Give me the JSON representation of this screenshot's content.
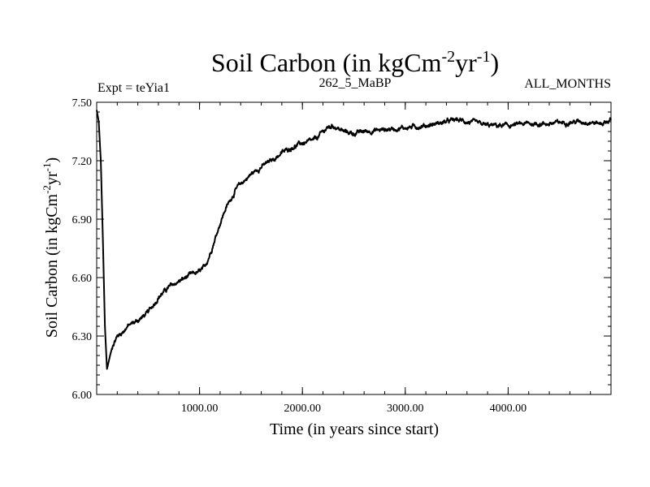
{
  "chart_data": {
    "type": "line",
    "title": "Soil Carbon (in kgCm",
    "title_sup1": "-2",
    "title_mid": "yr",
    "title_sup2": "-1",
    "title_end": ")",
    "subtitle_left": "Expt = teYia1",
    "subtitle_center": "262_5_MaBP",
    "subtitle_right": "ALL_MONTHS",
    "xlabel": "Time (in years since start)",
    "ylabel": "Soil Carbon (in kgCm",
    "ylabel_sup1": "-2",
    "ylabel_mid": "yr",
    "ylabel_sup2": "-1",
    "ylabel_end": ")",
    "xlim": [
      0,
      5000
    ],
    "ylim": [
      6.0,
      7.5
    ],
    "x_ticks": [
      1000,
      2000,
      3000,
      4000
    ],
    "x_tick_labels": [
      "1000.00",
      "2000.00",
      "3000.00",
      "4000.00"
    ],
    "y_ticks": [
      6.0,
      6.3,
      6.6,
      6.9,
      7.2,
      7.5
    ],
    "y_tick_labels": [
      "6.00",
      "6.30",
      "6.60",
      "6.90",
      "7.20",
      "7.50"
    ],
    "series": [
      {
        "name": "Soil Carbon",
        "color": "#000000",
        "x": [
          0,
          20,
          40,
          60,
          80,
          100,
          130,
          160,
          200,
          250,
          300,
          400,
          500,
          600,
          700,
          800,
          900,
          1000,
          1050,
          1100,
          1150,
          1200,
          1250,
          1300,
          1350,
          1400,
          1500,
          1600,
          1700,
          1800,
          1900,
          2000,
          2100,
          2150,
          2200,
          2250,
          2300,
          2400,
          2500,
          2600,
          2800,
          3000,
          3200,
          3400,
          3500,
          3600,
          3800,
          4000,
          4200,
          4400,
          4600,
          4800,
          4900,
          5000
        ],
        "y": [
          7.46,
          7.4,
          7.2,
          6.8,
          6.35,
          6.13,
          6.2,
          6.26,
          6.3,
          6.32,
          6.35,
          6.38,
          6.42,
          6.5,
          6.55,
          6.58,
          6.61,
          6.63,
          6.65,
          6.72,
          6.8,
          6.88,
          6.95,
          7.0,
          7.05,
          7.08,
          7.13,
          7.17,
          7.2,
          7.24,
          7.27,
          7.29,
          7.3,
          7.32,
          7.35,
          7.37,
          7.38,
          7.35,
          7.34,
          7.35,
          7.36,
          7.37,
          7.38,
          7.4,
          7.41,
          7.4,
          7.38,
          7.38,
          7.39,
          7.39,
          7.4,
          7.4,
          7.39,
          7.41
        ]
      }
    ]
  }
}
